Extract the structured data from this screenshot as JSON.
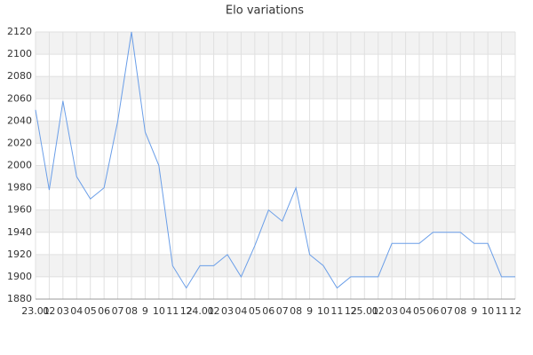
{
  "chart_data": {
    "type": "line",
    "title": "Elo variations",
    "categories": [
      "23.01",
      "02",
      "03",
      "04",
      "05",
      "06",
      "07",
      "08",
      "9",
      "10",
      "11",
      "12",
      "24.01",
      "02",
      "03",
      "04",
      "05",
      "06",
      "07",
      "08",
      "9",
      "10",
      "11",
      "12",
      "25.01",
      "02",
      "03",
      "04",
      "05",
      "06",
      "07",
      "08",
      "9",
      "10",
      "11",
      "12"
    ],
    "series": [
      {
        "name": "Elo",
        "color": "#6a9ee8",
        "values": [
          2050,
          1978,
          2058,
          1990,
          1970,
          1980,
          2040,
          2120,
          2030,
          2000,
          1910,
          1890,
          1910,
          1910,
          1920,
          1900,
          1928,
          1960,
          1950,
          1980,
          1920,
          1910,
          1890,
          1900,
          1900,
          1900,
          1930,
          1930,
          1930,
          1940,
          1940,
          1940,
          1930,
          1930,
          1900,
          1900
        ]
      }
    ],
    "ylim": [
      1880,
      2120
    ],
    "yticks": [
      1880,
      1900,
      1920,
      1940,
      1960,
      1980,
      2000,
      2020,
      2040,
      2060,
      2080,
      2100,
      2120
    ],
    "grid": true
  }
}
